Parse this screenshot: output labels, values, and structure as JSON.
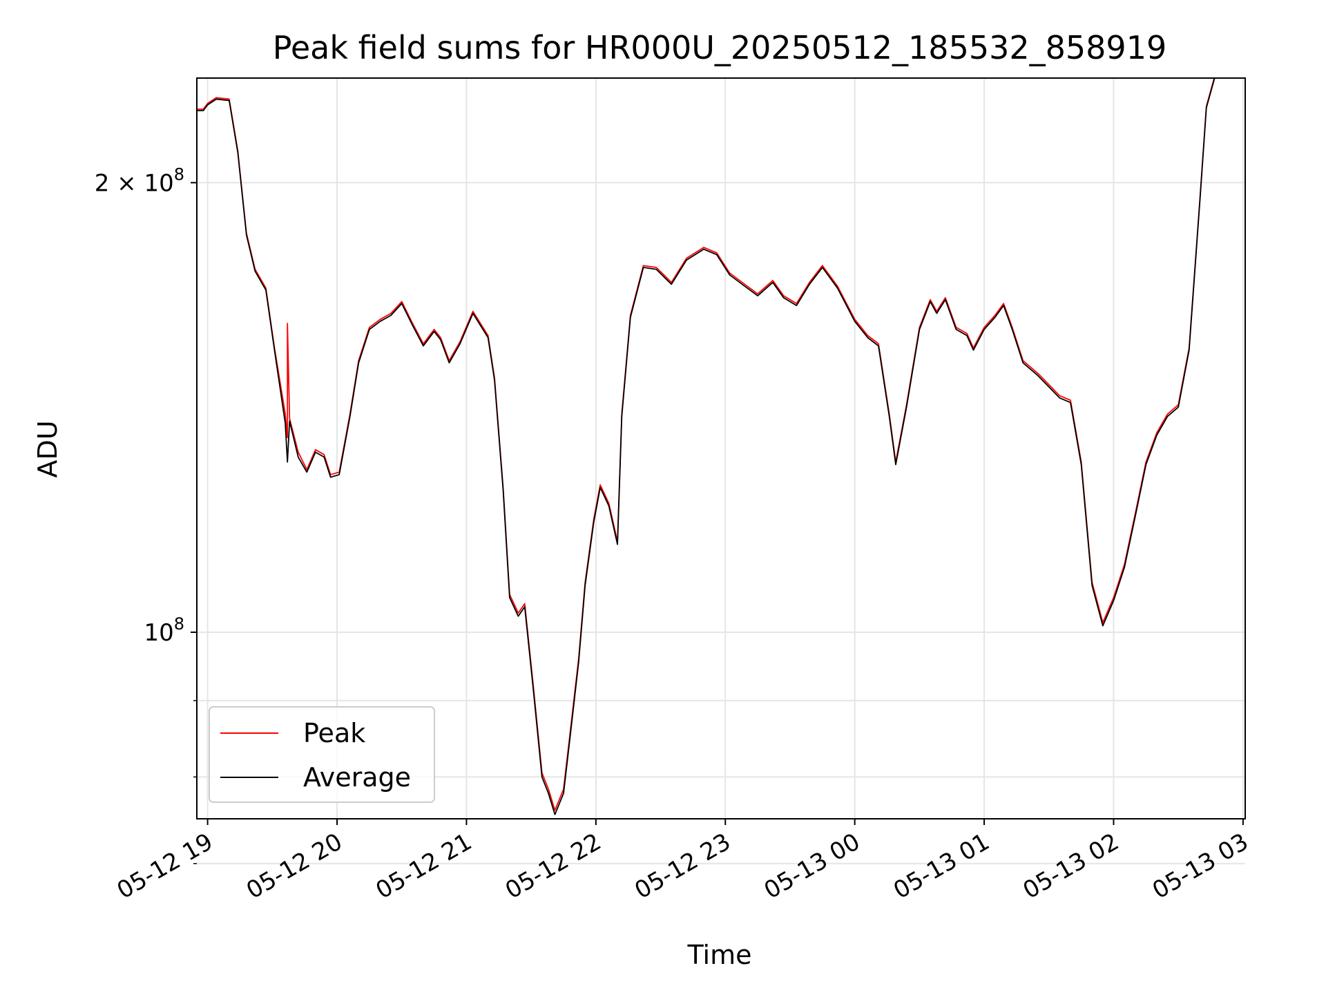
{
  "chart_data": {
    "type": "line",
    "title": "Peak field sums for HR000U_20250512_185532_858919",
    "xlabel": "Time",
    "ylabel": "ADU",
    "y_scale": "log",
    "grid": true,
    "legend_position": "lower-left",
    "x_ticks": [
      {
        "t": "2025-05-12T19:00",
        "label": "05-12 19"
      },
      {
        "t": "2025-05-12T20:00",
        "label": "05-12 20"
      },
      {
        "t": "2025-05-12T21:00",
        "label": "05-12 21"
      },
      {
        "t": "2025-05-12T22:00",
        "label": "05-12 22"
      },
      {
        "t": "2025-05-12T23:00",
        "label": "05-12 23"
      },
      {
        "t": "2025-05-13T00:00",
        "label": "05-13 00"
      },
      {
        "t": "2025-05-13T01:00",
        "label": "05-13 01"
      },
      {
        "t": "2025-05-13T02:00",
        "label": "05-13 02"
      },
      {
        "t": "2025-05-13T03:00",
        "label": "05-13 03"
      }
    ],
    "y_major_ticks": [
      {
        "value": 100000000,
        "mantissa": "",
        "base": "10",
        "exp": "8"
      },
      {
        "value": 200000000,
        "mantissa": "2 × ",
        "base": "10",
        "exp": "8"
      }
    ],
    "y_minor_ticks": [
      70000000,
      80000000,
      90000000
    ],
    "xlim": [
      "2025-05-12T18:55",
      "2025-05-13T03:01"
    ],
    "ylim": [
      75000000,
      235000000
    ],
    "series": [
      {
        "name": "Peak",
        "color": "#ff0000",
        "points": [
          [
            "2025-05-12T18:55",
            224000000
          ],
          [
            "2025-05-12T18:58",
            224000000
          ],
          [
            "2025-05-12T19:00",
            226000000
          ],
          [
            "2025-05-12T19:04",
            228000000
          ],
          [
            "2025-05-12T19:10",
            227500000
          ],
          [
            "2025-05-12T19:14",
            210000000
          ],
          [
            "2025-05-12T19:18",
            185000000
          ],
          [
            "2025-05-12T19:22",
            175000000
          ],
          [
            "2025-05-12T19:27",
            170000000
          ],
          [
            "2025-05-12T19:31",
            155000000
          ],
          [
            "2025-05-12T19:36",
            140000000
          ],
          [
            "2025-05-12T19:37",
            135000000
          ],
          [
            "2025-05-12T19:37",
            161000000
          ],
          [
            "2025-05-12T19:38",
            139000000
          ],
          [
            "2025-05-12T19:42",
            132000000
          ],
          [
            "2025-05-12T19:46",
            128500000
          ],
          [
            "2025-05-12T19:50",
            132500000
          ],
          [
            "2025-05-12T19:54",
            131500000
          ],
          [
            "2025-05-12T19:57",
            127500000
          ],
          [
            "2025-05-12T20:01",
            128000000
          ],
          [
            "2025-05-12T20:06",
            140000000
          ],
          [
            "2025-05-12T20:10",
            152000000
          ],
          [
            "2025-05-12T20:15",
            160000000
          ],
          [
            "2025-05-12T20:20",
            162000000
          ],
          [
            "2025-05-12T20:25",
            163500000
          ],
          [
            "2025-05-12T20:30",
            166500000
          ],
          [
            "2025-05-12T20:35",
            161000000
          ],
          [
            "2025-05-12T20:40",
            156000000
          ],
          [
            "2025-05-12T20:45",
            159500000
          ],
          [
            "2025-05-12T20:48",
            157500000
          ],
          [
            "2025-05-12T20:52",
            152000000
          ],
          [
            "2025-05-12T20:57",
            156500000
          ],
          [
            "2025-05-12T21:03",
            164000000
          ],
          [
            "2025-05-12T21:10",
            158000000
          ],
          [
            "2025-05-12T21:13",
            148000000
          ],
          [
            "2025-05-12T21:17",
            125000000
          ],
          [
            "2025-05-12T21:20",
            106000000
          ],
          [
            "2025-05-12T21:24",
            103000000
          ],
          [
            "2025-05-12T21:27",
            104500000
          ],
          [
            "2025-05-12T21:31",
            92000000
          ],
          [
            "2025-05-12T21:35",
            80500000
          ],
          [
            "2025-05-12T21:38",
            78500000
          ],
          [
            "2025-05-12T21:41",
            76000000
          ],
          [
            "2025-05-12T21:45",
            78500000
          ],
          [
            "2025-05-12T21:48",
            85500000
          ],
          [
            "2025-05-12T21:52",
            96000000
          ],
          [
            "2025-05-12T21:55",
            108000000
          ],
          [
            "2025-05-12T21:59",
            119000000
          ],
          [
            "2025-05-12T22:02",
            125500000
          ],
          [
            "2025-05-12T22:06",
            122000000
          ],
          [
            "2025-05-12T22:10",
            115000000
          ],
          [
            "2025-05-12T22:12",
            140000000
          ],
          [
            "2025-05-12T22:16",
            163000000
          ],
          [
            "2025-05-12T22:22",
            176000000
          ],
          [
            "2025-05-12T22:28",
            175500000
          ],
          [
            "2025-05-12T22:35",
            171500000
          ],
          [
            "2025-05-12T22:42",
            178000000
          ],
          [
            "2025-05-12T22:50",
            181000000
          ],
          [
            "2025-05-12T22:56",
            179500000
          ],
          [
            "2025-05-12T23:02",
            174000000
          ],
          [
            "2025-05-12T23:09",
            171000000
          ],
          [
            "2025-05-12T23:15",
            168500000
          ],
          [
            "2025-05-12T23:22",
            172000000
          ],
          [
            "2025-05-12T23:27",
            168000000
          ],
          [
            "2025-05-12T23:33",
            166000000
          ],
          [
            "2025-05-12T23:39",
            171500000
          ],
          [
            "2025-05-12T23:45",
            176000000
          ],
          [
            "2025-05-12T23:52",
            170500000
          ],
          [
            "2025-05-13T00:00",
            162000000
          ],
          [
            "2025-05-13T00:06",
            158000000
          ],
          [
            "2025-05-13T00:11",
            156000000
          ],
          [
            "2025-05-13T00:16",
            140000000
          ],
          [
            "2025-05-13T00:19",
            130000000
          ],
          [
            "2025-05-13T00:24",
            142000000
          ],
          [
            "2025-05-13T00:30",
            160000000
          ],
          [
            "2025-05-13T00:35",
            167000000
          ],
          [
            "2025-05-13T00:38",
            164000000
          ],
          [
            "2025-05-13T00:42",
            167500000
          ],
          [
            "2025-05-13T00:47",
            160000000
          ],
          [
            "2025-05-13T00:52",
            158500000
          ],
          [
            "2025-05-13T00:55",
            155000000
          ],
          [
            "2025-05-13T01:00",
            160000000
          ],
          [
            "2025-05-13T01:05",
            163000000
          ],
          [
            "2025-05-13T01:09",
            166000000
          ],
          [
            "2025-05-13T01:13",
            160000000
          ],
          [
            "2025-05-13T01:18",
            152000000
          ],
          [
            "2025-05-13T01:25",
            149000000
          ],
          [
            "2025-05-13T01:35",
            144000000
          ],
          [
            "2025-05-13T01:40",
            143000000
          ],
          [
            "2025-05-13T01:45",
            130000000
          ],
          [
            "2025-05-13T01:50",
            108000000
          ],
          [
            "2025-05-13T01:55",
            101500000
          ],
          [
            "2025-05-13T02:00",
            105500000
          ],
          [
            "2025-05-13T02:05",
            111000000
          ],
          [
            "2025-05-13T02:10",
            120000000
          ],
          [
            "2025-05-13T02:15",
            130000000
          ],
          [
            "2025-05-13T02:20",
            136000000
          ],
          [
            "2025-05-13T02:25",
            140000000
          ],
          [
            "2025-05-13T02:30",
            142000000
          ],
          [
            "2025-05-13T02:35",
            155000000
          ],
          [
            "2025-05-13T02:40",
            195000000
          ],
          [
            "2025-05-13T02:43",
            225000000
          ],
          [
            "2025-05-13T02:47",
            236000000
          ]
        ]
      },
      {
        "name": "Average",
        "color": "#000000",
        "points": [
          [
            "2025-05-12T18:55",
            223500000
          ],
          [
            "2025-05-12T18:58",
            223500000
          ],
          [
            "2025-05-12T19:00",
            225500000
          ],
          [
            "2025-05-12T19:04",
            227500000
          ],
          [
            "2025-05-12T19:10",
            227000000
          ],
          [
            "2025-05-12T19:14",
            209500000
          ],
          [
            "2025-05-12T19:18",
            184500000
          ],
          [
            "2025-05-12T19:22",
            174500000
          ],
          [
            "2025-05-12T19:27",
            169500000
          ],
          [
            "2025-05-12T19:31",
            154500000
          ],
          [
            "2025-05-12T19:36",
            138000000
          ],
          [
            "2025-05-12T19:37",
            130000000
          ],
          [
            "2025-05-12T19:38",
            138500000
          ],
          [
            "2025-05-12T19:42",
            131000000
          ],
          [
            "2025-05-12T19:46",
            128000000
          ],
          [
            "2025-05-12T19:50",
            132000000
          ],
          [
            "2025-05-12T19:54",
            131000000
          ],
          [
            "2025-05-12T19:57",
            127000000
          ],
          [
            "2025-05-12T20:01",
            127500000
          ],
          [
            "2025-05-12T20:06",
            139500000
          ],
          [
            "2025-05-12T20:10",
            151500000
          ],
          [
            "2025-05-12T20:15",
            159500000
          ],
          [
            "2025-05-12T20:20",
            161500000
          ],
          [
            "2025-05-12T20:25",
            163000000
          ],
          [
            "2025-05-12T20:30",
            166000000
          ],
          [
            "2025-05-12T20:35",
            160500000
          ],
          [
            "2025-05-12T20:40",
            155500000
          ],
          [
            "2025-05-12T20:45",
            159000000
          ],
          [
            "2025-05-12T20:48",
            157000000
          ],
          [
            "2025-05-12T20:52",
            151500000
          ],
          [
            "2025-05-12T20:57",
            156000000
          ],
          [
            "2025-05-12T21:03",
            163500000
          ],
          [
            "2025-05-12T21:10",
            157500000
          ],
          [
            "2025-05-12T21:13",
            147500000
          ],
          [
            "2025-05-12T21:17",
            124500000
          ],
          [
            "2025-05-12T21:20",
            105500000
          ],
          [
            "2025-05-12T21:24",
            102500000
          ],
          [
            "2025-05-12T21:27",
            104000000
          ],
          [
            "2025-05-12T21:31",
            91500000
          ],
          [
            "2025-05-12T21:35",
            80000000
          ],
          [
            "2025-05-12T21:38",
            78000000
          ],
          [
            "2025-05-12T21:41",
            75500000
          ],
          [
            "2025-05-12T21:45",
            78000000
          ],
          [
            "2025-05-12T21:48",
            85000000
          ],
          [
            "2025-05-12T21:52",
            95500000
          ],
          [
            "2025-05-12T21:55",
            107500000
          ],
          [
            "2025-05-12T21:59",
            118500000
          ],
          [
            "2025-05-12T22:02",
            125000000
          ],
          [
            "2025-05-12T22:06",
            121500000
          ],
          [
            "2025-05-12T22:10",
            114500000
          ],
          [
            "2025-05-12T22:12",
            139500000
          ],
          [
            "2025-05-12T22:16",
            162500000
          ],
          [
            "2025-05-12T22:22",
            175500000
          ],
          [
            "2025-05-12T22:28",
            175000000
          ],
          [
            "2025-05-12T22:35",
            171000000
          ],
          [
            "2025-05-12T22:42",
            177500000
          ],
          [
            "2025-05-12T22:50",
            180500000
          ],
          [
            "2025-05-12T22:56",
            179000000
          ],
          [
            "2025-05-12T23:02",
            173500000
          ],
          [
            "2025-05-12T23:09",
            170500000
          ],
          [
            "2025-05-12T23:15",
            168000000
          ],
          [
            "2025-05-12T23:22",
            171500000
          ],
          [
            "2025-05-12T23:27",
            167500000
          ],
          [
            "2025-05-12T23:33",
            165500000
          ],
          [
            "2025-05-12T23:39",
            171000000
          ],
          [
            "2025-05-12T23:45",
            175500000
          ],
          [
            "2025-05-12T23:52",
            170000000
          ],
          [
            "2025-05-13T00:00",
            161500000
          ],
          [
            "2025-05-13T00:06",
            157500000
          ],
          [
            "2025-05-13T00:11",
            155500000
          ],
          [
            "2025-05-13T00:16",
            139500000
          ],
          [
            "2025-05-13T00:19",
            129500000
          ],
          [
            "2025-05-13T00:24",
            141500000
          ],
          [
            "2025-05-13T00:30",
            159500000
          ],
          [
            "2025-05-13T00:35",
            166500000
          ],
          [
            "2025-05-13T00:38",
            163500000
          ],
          [
            "2025-05-13T00:42",
            167000000
          ],
          [
            "2025-05-13T00:47",
            159500000
          ],
          [
            "2025-05-13T00:52",
            158000000
          ],
          [
            "2025-05-13T00:55",
            154500000
          ],
          [
            "2025-05-13T01:00",
            159500000
          ],
          [
            "2025-05-13T01:05",
            162500000
          ],
          [
            "2025-05-13T01:09",
            165500000
          ],
          [
            "2025-05-13T01:13",
            159500000
          ],
          [
            "2025-05-13T01:18",
            151500000
          ],
          [
            "2025-05-13T01:25",
            148500000
          ],
          [
            "2025-05-13T01:35",
            143500000
          ],
          [
            "2025-05-13T01:40",
            142500000
          ],
          [
            "2025-05-13T01:45",
            129500000
          ],
          [
            "2025-05-13T01:50",
            107500000
          ],
          [
            "2025-05-13T01:55",
            101000000
          ],
          [
            "2025-05-13T02:00",
            105000000
          ],
          [
            "2025-05-13T02:05",
            110500000
          ],
          [
            "2025-05-13T02:10",
            119500000
          ],
          [
            "2025-05-13T02:15",
            129500000
          ],
          [
            "2025-05-13T02:20",
            135500000
          ],
          [
            "2025-05-13T02:25",
            139500000
          ],
          [
            "2025-05-13T02:30",
            141500000
          ],
          [
            "2025-05-13T02:35",
            154500000
          ],
          [
            "2025-05-13T02:40",
            194500000
          ],
          [
            "2025-05-13T02:43",
            224500000
          ],
          [
            "2025-05-13T02:47",
            235500000
          ]
        ]
      }
    ]
  }
}
